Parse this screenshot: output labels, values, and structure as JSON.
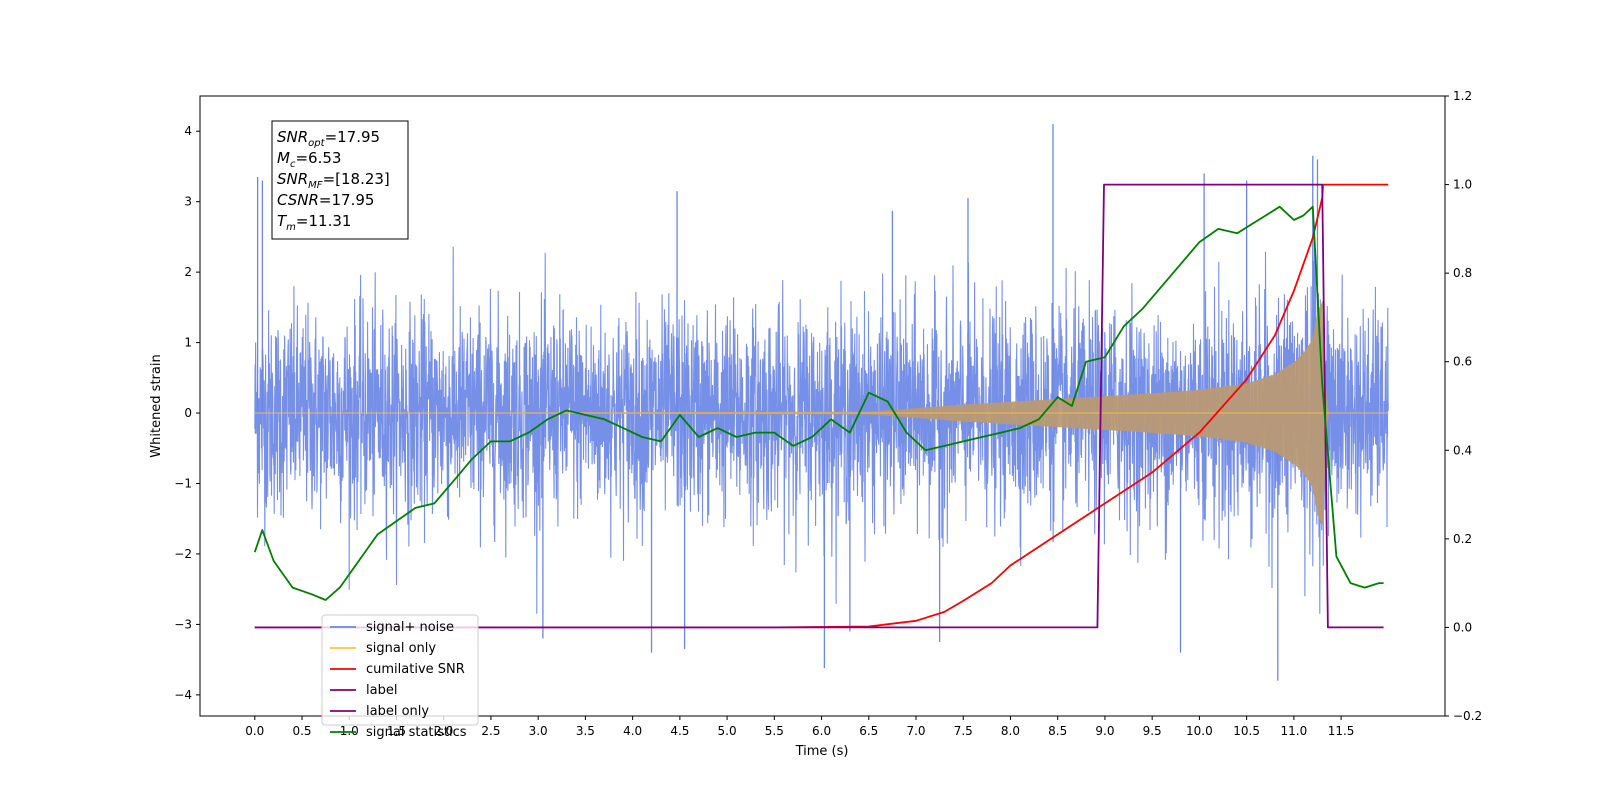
{
  "chart_data": {
    "type": "line",
    "xlabel": "Time (s)",
    "ylabel": "Whitened strain",
    "x_ticks": [
      0.0,
      0.5,
      1.0,
      1.5,
      2.0,
      2.5,
      3.0,
      3.5,
      4.0,
      4.5,
      5.0,
      5.5,
      6.0,
      6.5,
      7.0,
      7.5,
      8.0,
      8.5,
      9.0,
      9.5,
      10.0,
      10.5,
      11.0,
      11.5
    ],
    "x_tick_labels": [
      "0.0",
      "0.5",
      "1.0",
      "1.5",
      "2.0",
      "2.5",
      "3.0",
      "3.5",
      "4.0",
      "4.5",
      "5.0",
      "5.5",
      "6.0",
      "6.5",
      "7.0",
      "7.5",
      "8.0",
      "8.5",
      "9.0",
      "9.5",
      "10.0",
      "10.5",
      "11.0",
      "11.5"
    ],
    "xlim": [
      -0.58,
      12.6
    ],
    "ylim_left": [
      -4.3,
      4.5
    ],
    "y_ticks_left": [
      -4,
      -3,
      -2,
      -1,
      0,
      1,
      2,
      3,
      4
    ],
    "y_tick_labels_left": [
      "−4",
      "−3",
      "−2",
      "−1",
      "0",
      "1",
      "2",
      "3",
      "4"
    ],
    "ylim_right": [
      -0.2,
      1.2
    ],
    "y_ticks_right": [
      -0.2,
      0.0,
      0.2,
      0.4,
      0.6,
      0.8,
      1.0,
      1.2
    ],
    "y_tick_labels_right": [
      "−0.2",
      "0.0",
      "0.2",
      "0.4",
      "0.6",
      "0.8",
      "1.0",
      "1.2"
    ],
    "legend_position": "lower-left",
    "legend": [
      {
        "label": "signal+ noise",
        "color": "#6a87e6"
      },
      {
        "label": "signal only",
        "color": "#ffc04d"
      },
      {
        "label": "cumilative SNR",
        "color": "#ff0000"
      },
      {
        "label": "label",
        "color": "#800080"
      },
      {
        "label": "label only",
        "color": "#800080"
      },
      {
        "label": "signal statistics",
        "color": "#008000"
      }
    ],
    "annotation": {
      "lines": [
        {
          "sym": "SNR",
          "sub": "opt",
          "val": "=17.95"
        },
        {
          "sym": "M",
          "sub": "c",
          "val": "=6.53"
        },
        {
          "sym": "SNR",
          "sub": "MF",
          "val": "=[18.23]"
        },
        {
          "sym": "CSNR",
          "sub": "",
          "val": "=17.95"
        },
        {
          "sym": "T",
          "sub": "m",
          "val": "=11.31"
        }
      ]
    },
    "series": [
      {
        "name": "signal+ noise",
        "axis": "left",
        "color": "#6a87e6",
        "kind": "noise",
        "x_range": [
          0.0,
          12.0
        ],
        "envelope": {
          "lower": -2.7,
          "upper": 2.7
        },
        "spikes": [
          {
            "x": 0.03,
            "y": 3.35
          },
          {
            "x": 0.08,
            "y": 3.3
          },
          {
            "x": 4.47,
            "y": 3.15
          },
          {
            "x": 6.75,
            "y": 2.87
          },
          {
            "x": 7.55,
            "y": 3.05
          },
          {
            "x": 8.45,
            "y": 4.1
          },
          {
            "x": 10.05,
            "y": 3.4
          },
          {
            "x": 10.5,
            "y": 3.3
          },
          {
            "x": 11.2,
            "y": 3.65
          },
          {
            "x": 11.25,
            "y": 3.6
          },
          {
            "x": 6.03,
            "y": -3.62
          },
          {
            "x": 10.83,
            "y": -3.8
          },
          {
            "x": 4.2,
            "y": -3.4
          },
          {
            "x": 4.55,
            "y": -3.35
          },
          {
            "x": 9.8,
            "y": -3.4
          },
          {
            "x": 3.05,
            "y": -3.2
          },
          {
            "x": 7.25,
            "y": -3.25
          },
          {
            "x": 6.3,
            "y": -3.1
          }
        ]
      },
      {
        "name": "signal only",
        "axis": "left",
        "color": "#ffc04d",
        "kind": "chirp_envelope",
        "x": [
          0.0,
          6.5,
          7.0,
          7.5,
          8.0,
          8.5,
          9.0,
          9.5,
          10.0,
          10.5,
          10.8,
          11.0,
          11.1,
          11.2,
          11.25,
          11.31,
          11.35,
          12.0
        ],
        "amp": [
          0.0,
          0.02,
          0.07,
          0.12,
          0.16,
          0.2,
          0.24,
          0.28,
          0.33,
          0.42,
          0.55,
          0.72,
          0.85,
          1.05,
          1.45,
          1.6,
          0.0,
          0.0
        ]
      },
      {
        "name": "cumilative SNR",
        "axis": "right",
        "color": "#ff0000",
        "x": [
          0.0,
          5.5,
          6.5,
          7.0,
          7.3,
          7.5,
          7.8,
          8.0,
          8.5,
          9.0,
          9.5,
          10.0,
          10.5,
          10.8,
          11.0,
          11.2,
          11.3,
          11.31,
          12.0
        ],
        "y": [
          0.0,
          0.0,
          0.002,
          0.015,
          0.035,
          0.06,
          0.1,
          0.14,
          0.21,
          0.28,
          0.35,
          0.44,
          0.56,
          0.66,
          0.76,
          0.88,
          0.97,
          1.0,
          1.0
        ]
      },
      {
        "name": "label",
        "axis": "right",
        "color": "#800080",
        "x": [
          0.0,
          8.92,
          8.99,
          11.3,
          11.36,
          11.95
        ],
        "y": [
          0.0,
          0.0,
          1.0,
          1.0,
          0.0,
          0.0
        ]
      },
      {
        "name": "signal statistics",
        "axis": "right",
        "color": "#008000",
        "x": [
          0.0,
          0.08,
          0.2,
          0.4,
          0.6,
          0.75,
          0.9,
          1.1,
          1.3,
          1.5,
          1.7,
          1.9,
          2.1,
          2.3,
          2.5,
          2.7,
          2.9,
          3.1,
          3.3,
          3.5,
          3.7,
          3.9,
          4.1,
          4.3,
          4.5,
          4.7,
          4.9,
          5.1,
          5.3,
          5.5,
          5.7,
          5.9,
          6.1,
          6.3,
          6.5,
          6.7,
          6.9,
          7.1,
          7.3,
          7.5,
          7.7,
          7.9,
          8.1,
          8.3,
          8.5,
          8.65,
          8.8,
          9.0,
          9.2,
          9.4,
          9.6,
          9.8,
          10.0,
          10.2,
          10.4,
          10.55,
          10.7,
          10.85,
          11.0,
          11.1,
          11.2,
          11.3,
          11.45,
          11.6,
          11.75,
          11.9,
          11.95
        ],
        "y": [
          0.17,
          0.22,
          0.15,
          0.09,
          0.075,
          0.062,
          0.09,
          0.15,
          0.21,
          0.24,
          0.27,
          0.28,
          0.33,
          0.38,
          0.42,
          0.42,
          0.44,
          0.47,
          0.49,
          0.48,
          0.47,
          0.45,
          0.43,
          0.42,
          0.48,
          0.43,
          0.45,
          0.43,
          0.44,
          0.44,
          0.41,
          0.43,
          0.47,
          0.44,
          0.53,
          0.51,
          0.44,
          0.4,
          0.41,
          0.42,
          0.43,
          0.44,
          0.45,
          0.47,
          0.52,
          0.5,
          0.6,
          0.61,
          0.68,
          0.72,
          0.77,
          0.82,
          0.87,
          0.9,
          0.89,
          0.91,
          0.93,
          0.95,
          0.92,
          0.93,
          0.95,
          0.55,
          0.16,
          0.1,
          0.09,
          0.1,
          0.1
        ]
      }
    ]
  }
}
